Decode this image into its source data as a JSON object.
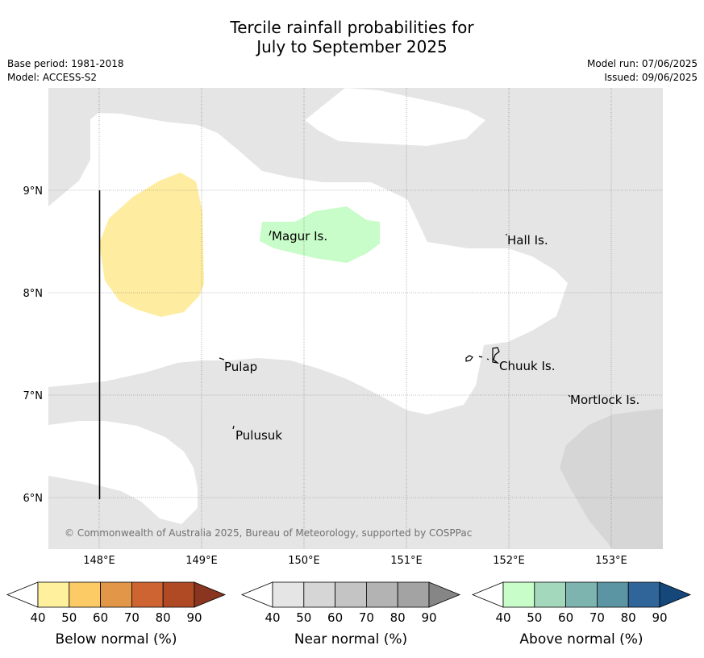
{
  "title_line1": "Tercile rainfall probabilities for",
  "title_line2": "July to September 2025",
  "meta_left": [
    "Base period: 1981-2018",
    "Model: ACCESS-S2"
  ],
  "meta_right": [
    "Model run: 07/06/2025",
    "Issued: 09/06/2025"
  ],
  "copyright": "© Commonwealth of Australia 2025, Bureau of Meteorology, supported by COSPPac",
  "x_ticks": [
    "148°E",
    "149°E",
    "150°E",
    "151°E",
    "152°E",
    "153°E"
  ],
  "y_ticks": [
    "9°N",
    "8°N",
    "7°N",
    "6°N"
  ],
  "places": [
    "Magur Is.",
    "Hall Is.",
    "Pulap",
    "Chuuk Is.",
    "Mortlock Is.",
    "Pulusuk"
  ],
  "colors": {
    "near_normal_40": "#e5e5e5",
    "near_normal_50": "#d6d6d6",
    "below_normal_40": "#feeca0",
    "above_normal_40": "#c8fcc8"
  },
  "legends": [
    {
      "label": "Below normal (%)",
      "ticks": [
        "40",
        "50",
        "60",
        "70",
        "80",
        "90"
      ],
      "colors": [
        "#fff09e",
        "#fdcb66",
        "#e29647",
        "#cf6433",
        "#b04a25",
        "#8a3520"
      ]
    },
    {
      "label": "Near normal (%)",
      "ticks": [
        "40",
        "50",
        "60",
        "70",
        "80",
        "90"
      ],
      "colors": [
        "#e5e5e5",
        "#d6d6d6",
        "#c4c4c4",
        "#b3b3b3",
        "#a3a3a3",
        "#868686"
      ]
    },
    {
      "label": "Above normal (%)",
      "ticks": [
        "40",
        "50",
        "60",
        "70",
        "80",
        "90"
      ],
      "colors": [
        "#c8fcc8",
        "#a4d8bd",
        "#7eb4b0",
        "#5b95a3",
        "#2f6599",
        "#15477a"
      ]
    }
  ]
}
